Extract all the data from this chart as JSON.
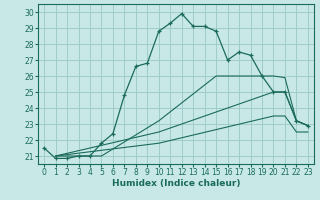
{
  "xlabel": "Humidex (Indice chaleur)",
  "bg_color": "#c8e8e8",
  "grid_color": "#a0cccc",
  "line_color": "#1a6b5a",
  "marker": "+",
  "xlim": [
    -0.5,
    23.5
  ],
  "ylim": [
    20.5,
    30.5
  ],
  "xticks": [
    0,
    1,
    2,
    3,
    4,
    5,
    6,
    7,
    8,
    9,
    10,
    11,
    12,
    13,
    14,
    15,
    16,
    17,
    18,
    19,
    20,
    21,
    22,
    23
  ],
  "yticks": [
    21,
    22,
    23,
    24,
    25,
    26,
    27,
    28,
    29,
    30
  ],
  "series_main": {
    "x": [
      0,
      1,
      2,
      3,
      4,
      5,
      6,
      7,
      8,
      9,
      10,
      11,
      12,
      13,
      14,
      15,
      16,
      17,
      18,
      19,
      20,
      21,
      22,
      23
    ],
    "y": [
      21.5,
      20.85,
      20.85,
      21.0,
      21.0,
      21.8,
      22.4,
      24.8,
      26.6,
      26.8,
      28.8,
      29.3,
      29.9,
      29.1,
      29.1,
      28.8,
      27.0,
      27.5,
      27.3,
      26.0,
      25.0,
      25.0,
      23.2,
      22.9
    ]
  },
  "series_fan": [
    {
      "x": [
        1,
        3,
        4,
        5,
        10,
        15,
        19,
        20,
        21,
        22,
        23
      ],
      "y": [
        21.0,
        21.0,
        21.0,
        21.0,
        23.2,
        26.0,
        26.0,
        26.0,
        25.9,
        23.2,
        22.9
      ]
    },
    {
      "x": [
        1,
        10,
        20,
        21,
        22,
        23
      ],
      "y": [
        21.0,
        22.5,
        25.0,
        25.0,
        23.2,
        22.9
      ]
    },
    {
      "x": [
        1,
        10,
        20,
        21,
        22,
        23
      ],
      "y": [
        21.0,
        21.8,
        23.5,
        23.5,
        22.5,
        22.5
      ]
    }
  ]
}
